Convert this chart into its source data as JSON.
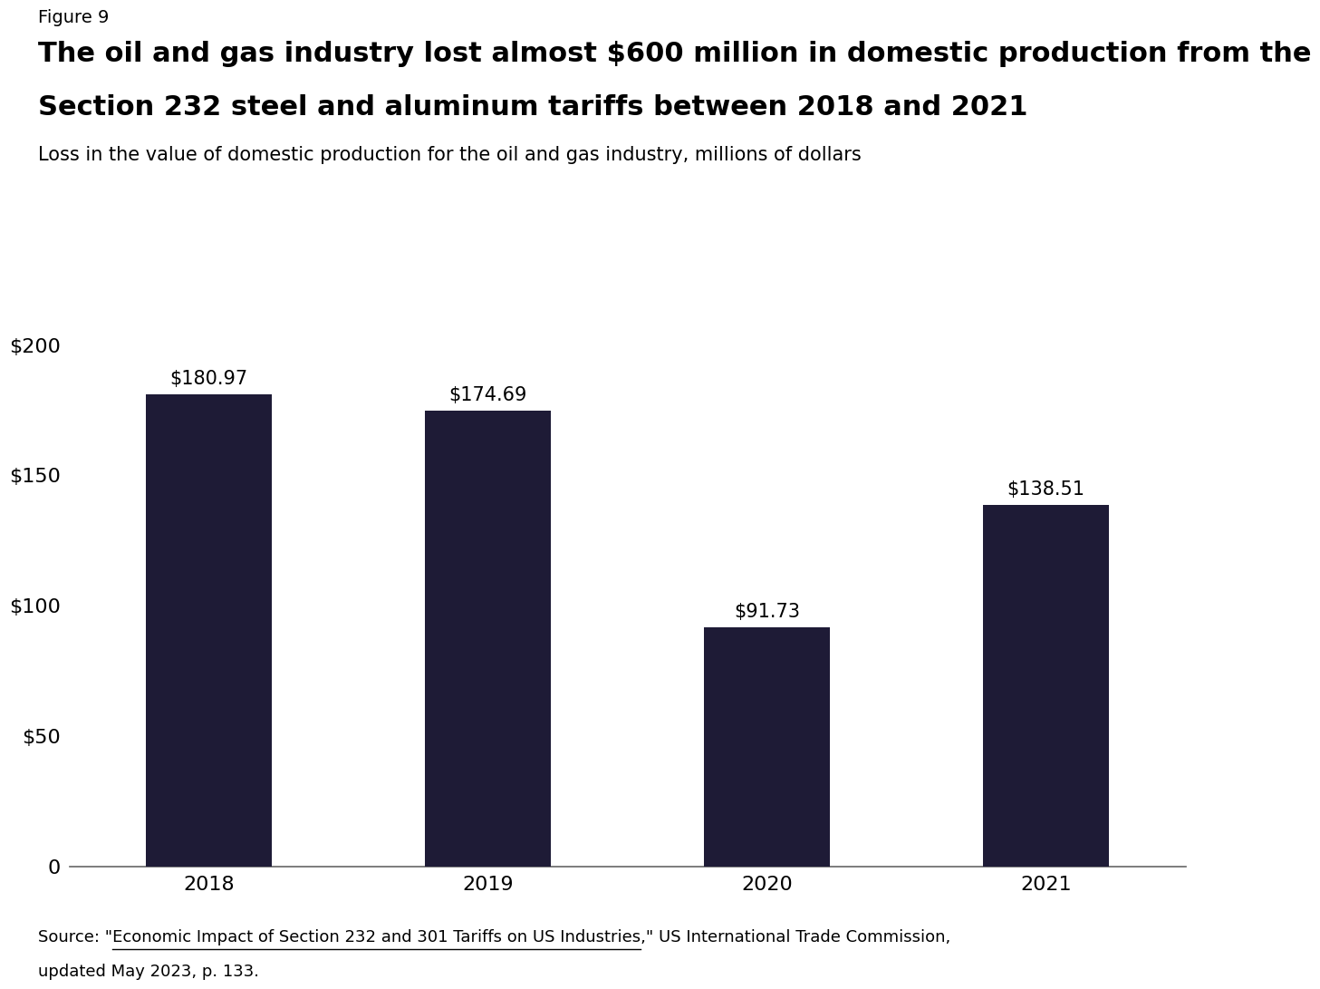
{
  "figure_label": "Figure 9",
  "title_line1": "The oil and gas industry lost almost $600 million in domestic production from the",
  "title_line2": "Section 232 steel and aluminum tariffs between 2018 and 2021",
  "subtitle": "Loss in the value of domestic production for the oil and gas industry, millions of dollars",
  "categories": [
    "2018",
    "2019",
    "2020",
    "2021"
  ],
  "values": [
    180.97,
    174.69,
    91.73,
    138.51
  ],
  "bar_color": "#1e1b36",
  "bar_labels": [
    "$180.97",
    "$174.69",
    "$91.73",
    "$138.51"
  ],
  "yticks": [
    0,
    50,
    100,
    150,
    200
  ],
  "ytick_labels": [
    "0",
    "$50",
    "$100",
    "$150",
    "$200"
  ],
  "ylim": [
    0,
    215
  ],
  "source_line1": "Source: \"Economic Impact of Section 232 and 301 Tariffs on US Industries,\" US International Trade Commission,",
  "source_line2": "updated May 2023, p. 133.",
  "source_prefix": "Source: \"",
  "source_underline_text": "Economic Impact of Section 232 and 301 Tariffs on US Industries",
  "background_color": "#ffffff",
  "title_fontsize": 22,
  "subtitle_fontsize": 15,
  "figure_label_fontsize": 14,
  "bar_label_fontsize": 15,
  "tick_fontsize": 16,
  "source_fontsize": 13
}
